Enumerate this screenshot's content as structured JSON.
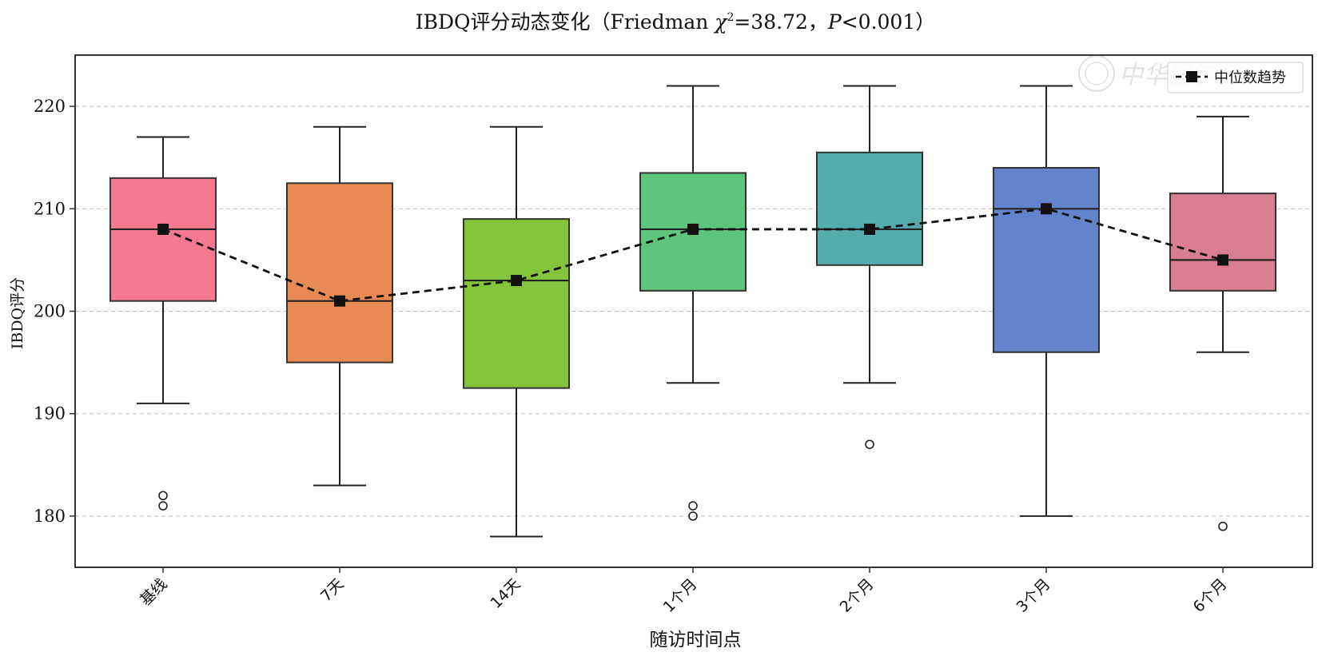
{
  "chart_data": {
    "type": "box",
    "title": {
      "prefix": "IBDQ评分动态变化（Friedman ",
      "chi": "χ",
      "sup": "2",
      "stat": "=38.72，",
      "p": "P",
      "ptext": "<0.001）"
    },
    "xlabel": "随访时间点",
    "ylabel": "IBDQ评分",
    "ylim": [
      175,
      225
    ],
    "yticks": [
      180,
      190,
      200,
      210,
      220
    ],
    "grid": true,
    "legend": {
      "position": "top-right",
      "label": "中位数趋势"
    },
    "watermark": "中华医学会",
    "categories": [
      "基线",
      "7天",
      "14天",
      "1个月",
      "2个月",
      "3个月",
      "6个月"
    ],
    "colors": [
      "#F4788F",
      "#E88A54",
      "#84C43A",
      "#5EC67C",
      "#55ACAC",
      "#6383CC",
      "#D97E92"
    ],
    "boxes": [
      {
        "whisker_low": 191,
        "q1": 201,
        "median": 208,
        "q3": 213,
        "whisker_high": 217,
        "outliers": [
          182,
          181
        ]
      },
      {
        "whisker_low": 183,
        "q1": 195,
        "median": 201,
        "q3": 212.5,
        "whisker_high": 218,
        "outliers": []
      },
      {
        "whisker_low": 178,
        "q1": 192.5,
        "median": 203,
        "q3": 209,
        "whisker_high": 218,
        "outliers": []
      },
      {
        "whisker_low": 193,
        "q1": 202,
        "median": 208,
        "q3": 213.5,
        "whisker_high": 222,
        "outliers": [
          181,
          180
        ]
      },
      {
        "whisker_low": 193,
        "q1": 204.5,
        "median": 208,
        "q3": 215.5,
        "whisker_high": 222,
        "outliers": [
          187
        ]
      },
      {
        "whisker_low": 180,
        "q1": 196,
        "median": 210,
        "q3": 214,
        "whisker_high": 222,
        "outliers": []
      },
      {
        "whisker_low": 196,
        "q1": 202,
        "median": 205,
        "q3": 211.5,
        "whisker_high": 219,
        "outliers": [
          179
        ]
      }
    ],
    "median_trend": [
      208,
      201,
      203,
      208,
      208,
      210,
      205
    ]
  }
}
